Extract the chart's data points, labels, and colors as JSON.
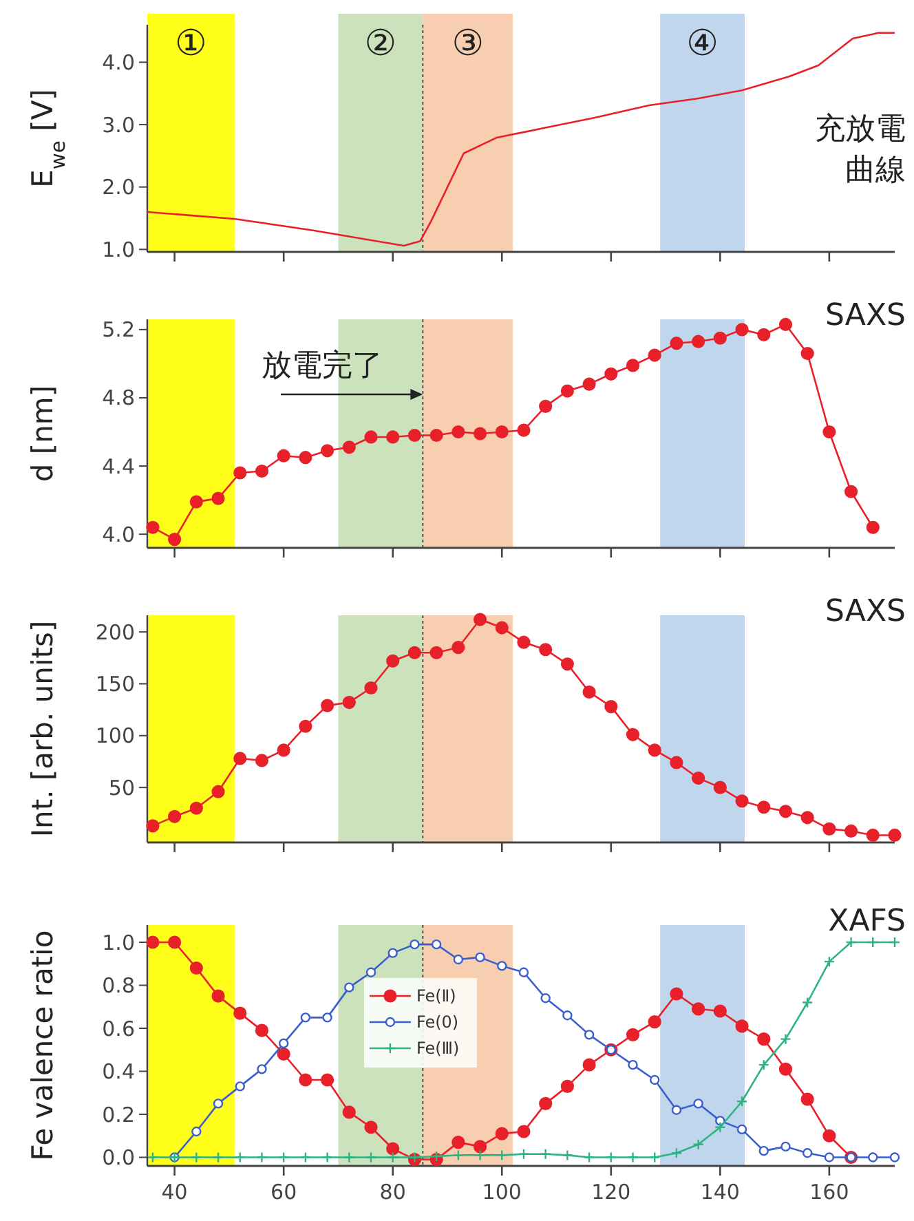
{
  "chart_data": [
    {
      "type": "line",
      "ylabel": "E$_{we}$ [V]",
      "xlim": [
        35,
        172
      ],
      "xticks": [
        {
          "value": 40,
          "label": null
        },
        {
          "value": 60,
          "label": null
        },
        {
          "value": 80,
          "label": null
        },
        {
          "value": 100,
          "label": null
        },
        {
          "value": 120,
          "label": null
        },
        {
          "value": 140,
          "label": null
        },
        {
          "value": 160,
          "label": null
        }
      ],
      "ylim": [
        0.96,
        4.6
      ],
      "yticks": [
        {
          "value": 1,
          "label": "1.0"
        },
        {
          "value": 2,
          "label": "2.0"
        },
        {
          "value": 3,
          "label": "3.0"
        },
        {
          "value": 4,
          "label": "4.0"
        }
      ],
      "tick_labels": "y",
      "grid": false,
      "legend": false,
      "series": [
        {
          "color": "#e8202a",
          "x": [
            35,
            51,
            65,
            82,
            85,
            87,
            93,
            99,
            108,
            117,
            127,
            136,
            144,
            152.6,
            158,
            164.3,
            169,
            172
          ],
          "values": [
            1.6,
            1.49,
            1.31,
            1.06,
            1.13,
            1.45,
            2.54,
            2.79,
            2.95,
            3.11,
            3.31,
            3.42,
            3.55,
            3.77,
            3.95,
            4.38,
            4.47,
            4.47
          ]
        }
      ],
      "bands": [
        {
          "axis": "x",
          "from": 35,
          "to": 51,
          "label": "①",
          "color": "#ffff00"
        },
        {
          "axis": "x",
          "from": 70,
          "to": 85.5,
          "label": "②",
          "color": "#c5dfb5"
        },
        {
          "axis": "x",
          "from": 85.5,
          "to": 102,
          "label": "③",
          "color": "#f7c9a8"
        },
        {
          "axis": "x",
          "from": 129,
          "to": 144.5,
          "label": "④",
          "color": "#b8d2ea"
        }
      ],
      "ref_lines": [
        {
          "axis": "x",
          "value": 85.5,
          "line_style": "dotted",
          "color": "#555555"
        }
      ],
      "annotations": [
        "充放電曲線"
      ]
    },
    {
      "type": "line",
      "ylabel": "d [nm]",
      "xlim": [
        35,
        172
      ],
      "xticks": [
        {
          "value": 40,
          "label": null
        },
        {
          "value": 60,
          "label": null
        },
        {
          "value": 80,
          "label": null
        },
        {
          "value": 100,
          "label": null
        },
        {
          "value": 120,
          "label": null
        },
        {
          "value": 140,
          "label": null
        },
        {
          "value": 160,
          "label": null
        }
      ],
      "ylim": [
        3.92,
        5.26
      ],
      "yticks": [
        {
          "value": 4,
          "label": "4.0"
        },
        4.4,
        4.8,
        5.2
      ],
      "tick_labels": "y",
      "grid": false,
      "legend": false,
      "marker": "circle",
      "series": [
        {
          "color": "#e8202a",
          "x": [
            36,
            40,
            44,
            48,
            52,
            56,
            60,
            64,
            68,
            72,
            76,
            80,
            84,
            88,
            92,
            96,
            100,
            104,
            108,
            112,
            116,
            120,
            124,
            128,
            132,
            136,
            140,
            144,
            148,
            152,
            156,
            160,
            164,
            168
          ],
          "values": [
            4.04,
            3.97,
            4.19,
            4.21,
            4.36,
            4.37,
            4.46,
            4.45,
            4.49,
            4.51,
            4.57,
            4.57,
            4.58,
            4.58,
            4.6,
            4.59,
            4.6,
            4.61,
            4.75,
            4.84,
            4.88,
            4.94,
            4.99,
            5.05,
            5.12,
            5.13,
            5.15,
            5.2,
            5.17,
            5.23,
            5.06,
            4.6,
            4.25,
            4.04
          ]
        }
      ],
      "bands": [
        {
          "axis": "x",
          "from": 35,
          "to": 51,
          "color": "#ffff00"
        },
        {
          "axis": "x",
          "from": 70,
          "to": 85.5,
          "color": "#c5dfb5"
        },
        {
          "axis": "x",
          "from": 85.5,
          "to": 102,
          "color": "#f7c9a8"
        },
        {
          "axis": "x",
          "from": 129,
          "to": 144.5,
          "color": "#b8d2ea"
        }
      ],
      "ref_lines": [
        {
          "axis": "x",
          "value": 85.5,
          "line_style": "dotted",
          "color": "#555555"
        }
      ],
      "annotations": [
        "SAXS",
        {
          "text": "放電完了",
          "x": 85.5,
          "y": 4.82
        }
      ]
    },
    {
      "type": "line",
      "ylabel": "Int. [arb. units]",
      "xlim": [
        35,
        172
      ],
      "xticks": [
        {
          "value": 40,
          "label": null
        },
        {
          "value": 60,
          "label": null
        },
        {
          "value": 80,
          "label": null
        },
        {
          "value": 100,
          "label": null
        },
        {
          "value": 120,
          "label": null
        },
        {
          "value": 140,
          "label": null
        },
        {
          "value": 160,
          "label": null
        }
      ],
      "ylim": [
        -3,
        216
      ],
      "yticks": [
        50,
        100,
        150,
        200
      ],
      "tick_labels": "y",
      "grid": false,
      "legend": false,
      "marker": "circle",
      "series": [
        {
          "color": "#e8202a",
          "x": [
            36,
            40,
            44,
            48,
            52,
            56,
            60,
            64,
            68,
            72,
            76,
            80,
            84,
            88,
            92,
            96,
            100,
            104,
            108,
            112,
            116,
            120,
            124,
            128,
            132,
            136,
            140,
            144,
            148,
            152,
            156,
            160,
            164,
            168,
            172
          ],
          "values": [
            13,
            22,
            30,
            46,
            78,
            76,
            86,
            109,
            129,
            132,
            146,
            172,
            180,
            180,
            185,
            212,
            204,
            190,
            183,
            169,
            142,
            128,
            101,
            86,
            74,
            59,
            50,
            37,
            31,
            27,
            21,
            10,
            8,
            4,
            4
          ]
        }
      ],
      "bands": [
        {
          "axis": "x",
          "from": 35,
          "to": 51,
          "color": "#ffff00"
        },
        {
          "axis": "x",
          "from": 70,
          "to": 85.5,
          "color": "#c5dfb5"
        },
        {
          "axis": "x",
          "from": 85.5,
          "to": 102,
          "color": "#f7c9a8"
        },
        {
          "axis": "x",
          "from": 129,
          "to": 144.5,
          "color": "#b8d2ea"
        }
      ],
      "ref_lines": [
        {
          "axis": "x",
          "value": 85.5,
          "line_style": "dotted",
          "color": "#555555"
        }
      ],
      "annotations": [
        "SAXS"
      ]
    },
    {
      "type": "line",
      "ylabel": "Fe valence ratio",
      "xlim": [
        35,
        172
      ],
      "xticks": [
        40,
        60,
        80,
        100,
        120,
        140,
        160
      ],
      "ylim": [
        -0.04,
        1.08
      ],
      "yticks": [
        {
          "value": 0,
          "label": "0.0"
        },
        0.2,
        0.4,
        0.6,
        0.8,
        {
          "value": 1,
          "label": "1.0"
        }
      ],
      "grid": false,
      "legend": "center",
      "series": [
        {
          "name": "Fe(Ⅱ)",
          "color": "#e8202a",
          "marker": "circle",
          "x": [
            36,
            40,
            44,
            48,
            52,
            56,
            60,
            64,
            68,
            72,
            76,
            80,
            84,
            88,
            92,
            96,
            100,
            104,
            108,
            112,
            116,
            120,
            124,
            128,
            132,
            136,
            140,
            144,
            148,
            152,
            156,
            160,
            164
          ],
          "values": [
            1.0,
            1.0,
            0.88,
            0.75,
            0.67,
            0.59,
            0.48,
            0.36,
            0.36,
            0.21,
            0.14,
            0.04,
            -0.01,
            -0.01,
            0.07,
            0.05,
            0.11,
            0.12,
            0.25,
            0.33,
            0.43,
            0.5,
            0.57,
            0.63,
            0.76,
            0.69,
            0.68,
            0.61,
            0.55,
            0.41,
            0.27,
            0.1,
            0.0
          ]
        },
        {
          "name": "Fe(0)",
          "color": "#3a5fcd",
          "marker": "circle",
          "x": [
            40,
            44,
            48,
            52,
            56,
            60,
            64,
            68,
            72,
            76,
            80,
            84,
            88,
            92,
            96,
            100,
            104,
            108,
            112,
            116,
            120,
            124,
            128,
            132,
            136,
            140,
            144,
            148,
            152,
            156,
            160,
            164,
            168,
            172
          ],
          "values": [
            0.0,
            0.12,
            0.25,
            0.33,
            0.41,
            0.53,
            0.65,
            0.65,
            0.79,
            0.86,
            0.95,
            0.99,
            0.99,
            0.92,
            0.93,
            0.89,
            0.86,
            0.74,
            0.66,
            0.57,
            0.5,
            0.43,
            0.36,
            0.22,
            0.25,
            0.17,
            0.13,
            0.03,
            0.05,
            0.02,
            0.0,
            0.0,
            0.0,
            0.0
          ]
        },
        {
          "name": "Fe(Ⅲ)",
          "color": "#2fb383",
          "marker": "cross",
          "x": [
            36,
            40,
            44,
            48,
            52,
            56,
            60,
            64,
            68,
            72,
            76,
            80,
            84,
            88,
            92,
            96,
            100,
            104,
            108,
            112,
            116,
            120,
            124,
            128,
            132,
            136,
            140,
            144,
            148,
            152,
            156,
            160,
            164,
            168,
            172
          ],
          "values": [
            0,
            0,
            0,
            0,
            0,
            0,
            0,
            0,
            0,
            0,
            0,
            0,
            0,
            0.005,
            0.01,
            0.01,
            0.01,
            0.015,
            0.015,
            0.01,
            0,
            0,
            0,
            0,
            0.02,
            0.06,
            0.14,
            0.26,
            0.43,
            0.55,
            0.72,
            0.91,
            1.0,
            1.0,
            1.0
          ]
        }
      ],
      "bands": [
        {
          "axis": "x",
          "from": 35,
          "to": 51,
          "color": "#ffff00"
        },
        {
          "axis": "x",
          "from": 70,
          "to": 85.5,
          "color": "#c5dfb5"
        },
        {
          "axis": "x",
          "from": 85.5,
          "to": 102,
          "color": "#f7c9a8"
        },
        {
          "axis": "x",
          "from": 129,
          "to": 144.5,
          "color": "#b8d2ea"
        }
      ],
      "ref_lines": [
        {
          "axis": "x",
          "value": 85.5,
          "line_style": "dotted",
          "color": "#555555"
        }
      ],
      "annotations": [
        "XAFS"
      ]
    }
  ]
}
